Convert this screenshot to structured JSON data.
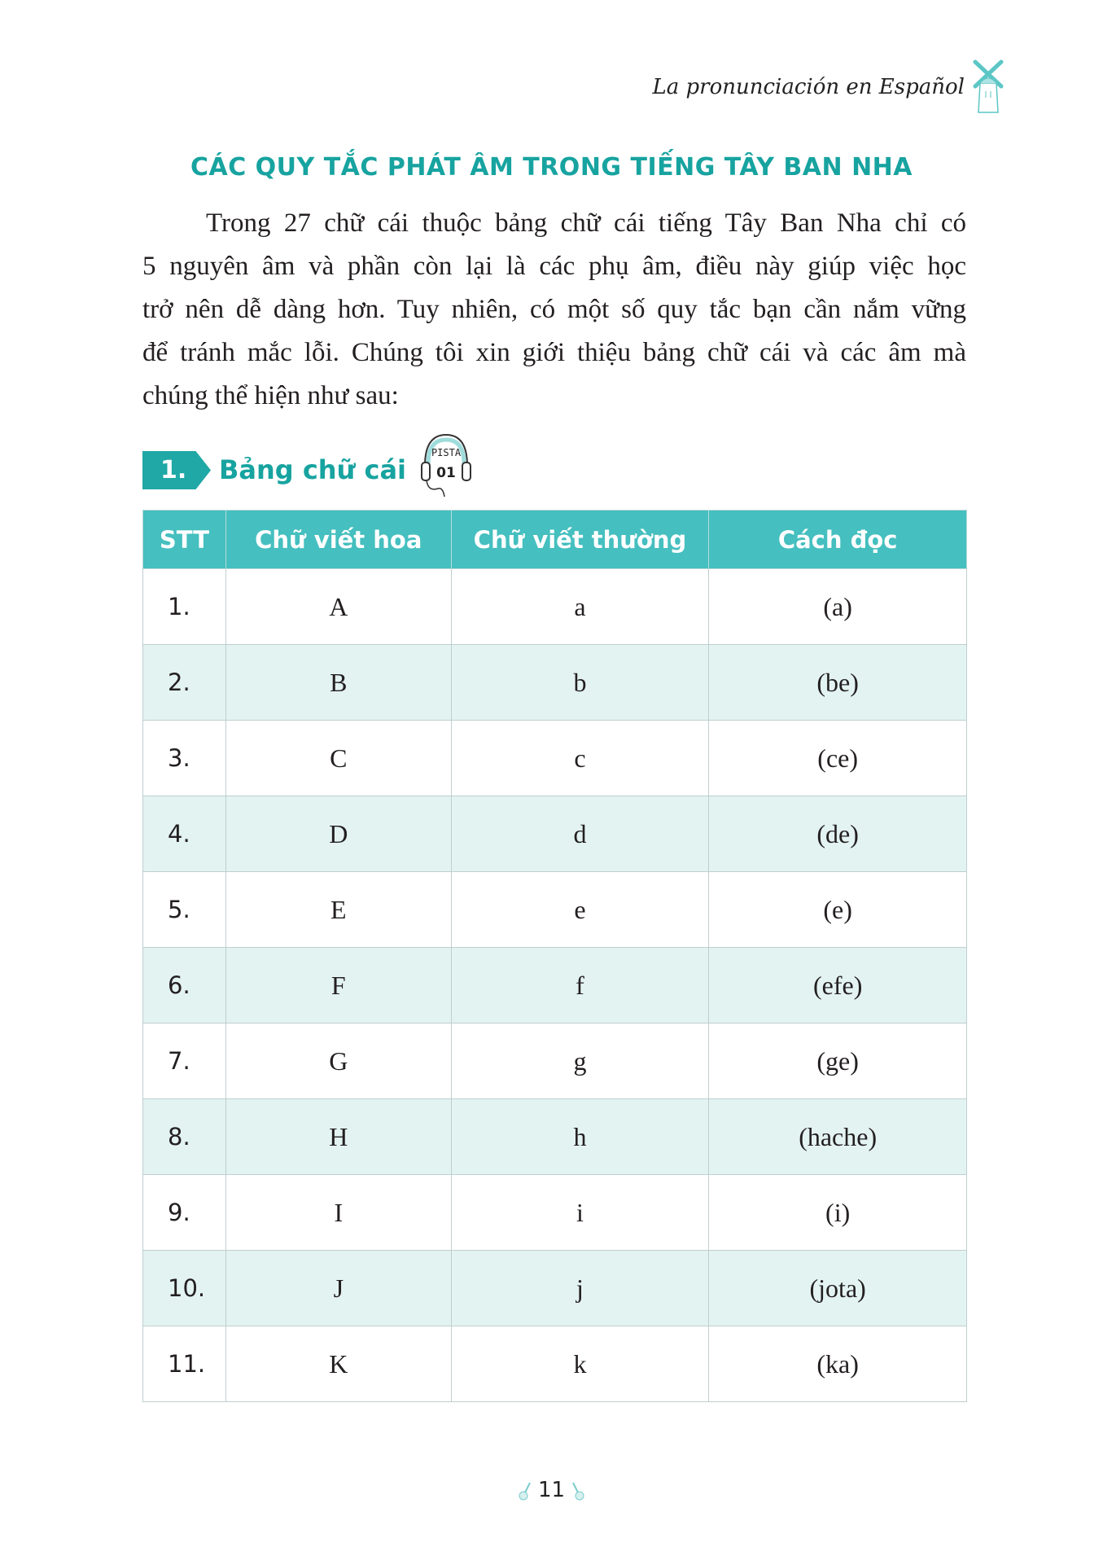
{
  "running_head": "La pronunciación en Español",
  "title": "CÁC QUY TẮC PHÁT ÂM TRONG TIẾNG TÂY BAN NHA",
  "intro_lines": [
    "Trong 27 chữ cái thuộc bảng chữ cái tiếng Tây Ban Nha chỉ có",
    "5 nguyên âm và phần còn lại là các phụ âm, điều này giúp việc học",
    "trở nên dễ dàng hơn. Tuy nhiên, có một số quy tắc bạn cần nắm vững",
    "để tránh mắc lỗi. Chúng tôi xin giới thiệu bảng chữ cái và các âm mà",
    "chúng thể hiện như sau:"
  ],
  "section": {
    "number": "1.",
    "title": "Bảng chữ cái",
    "track_label": "PISTA",
    "track_number": "01"
  },
  "table": {
    "headers": [
      "STT",
      "Chữ viết hoa",
      "Chữ viết thường",
      "Cách đọc"
    ],
    "rows": [
      [
        "1.",
        "A",
        "a",
        "(a)"
      ],
      [
        "2.",
        "B",
        "b",
        "(be)"
      ],
      [
        "3.",
        "C",
        "c",
        "(ce)"
      ],
      [
        "4.",
        "D",
        "d",
        "(de)"
      ],
      [
        "5.",
        "E",
        "e",
        "(e)"
      ],
      [
        "6.",
        "F",
        "f",
        "(efe)"
      ],
      [
        "7.",
        "G",
        "g",
        "(ge)"
      ],
      [
        "8.",
        "H",
        "h",
        "(hache)"
      ],
      [
        "9.",
        "I",
        "i",
        "(i)"
      ],
      [
        "10.",
        "J",
        "j",
        "(jota)"
      ],
      [
        "11.",
        "K",
        "k",
        "(ka)"
      ]
    ]
  },
  "page_number": "11",
  "colors": {
    "accent": "#17a3a0",
    "header_bg": "#45bfbf",
    "alt_row_bg": "#e3f3f2"
  }
}
